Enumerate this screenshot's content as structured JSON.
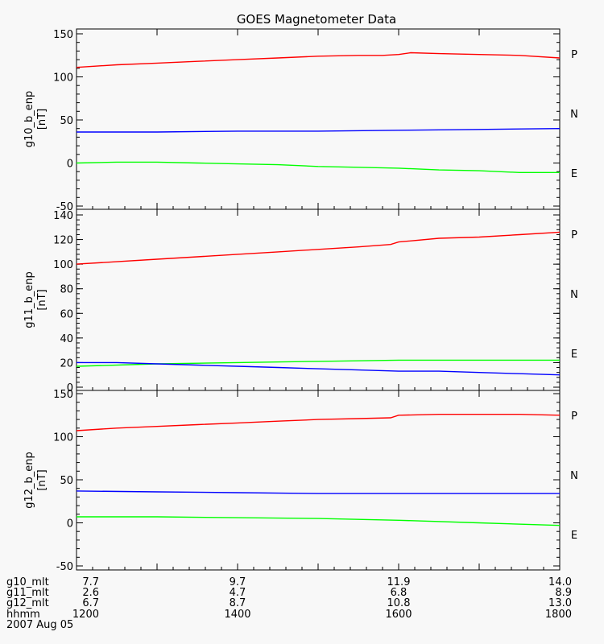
{
  "chart_data": {
    "type": "line",
    "title": "GOES Magnetometer Data",
    "date": "2007 Aug 05",
    "x_range": [
      1200,
      1800
    ],
    "panels": [
      {
        "ylabel": "g10_b_enp",
        "yunit": "[nT]",
        "ylim": [
          -50,
          150
        ],
        "yticks": [
          "-50",
          "0",
          "50",
          "100",
          "150"
        ],
        "legend": [
          "P",
          "N",
          "E"
        ],
        "series": [
          {
            "name": "P",
            "color": "#ff0000",
            "x": [
              1200,
              1250,
              1300,
              1350,
              1400,
              1450,
              1500,
              1550,
              1580,
              1600,
              1615,
              1650,
              1700,
              1750,
              1800
            ],
            "y": [
              111,
              114,
              116,
              118,
              120,
              122,
              124,
              125,
              125,
              126,
              128,
              127,
              126,
              125,
              122
            ]
          },
          {
            "name": "N",
            "color": "#0000ff",
            "x": [
              1200,
              1300,
              1400,
              1500,
              1600,
              1700,
              1800
            ],
            "y": [
              36,
              36,
              37,
              37,
              38,
              39,
              40
            ]
          },
          {
            "name": "E",
            "color": "#00ff00",
            "x": [
              1200,
              1250,
              1300,
              1350,
              1400,
              1450,
              1500,
              1550,
              1600,
              1650,
              1700,
              1750,
              1800
            ],
            "y": [
              0,
              1,
              1,
              0,
              -1,
              -2,
              -4,
              -5,
              -6,
              -8,
              -9,
              -11,
              -11
            ]
          }
        ]
      },
      {
        "ylabel": "g11_b_enp",
        "yunit": "[nT]",
        "ylim": [
          0,
          140
        ],
        "yticks": [
          "0",
          "20",
          "40",
          "60",
          "80",
          "100",
          "120",
          "140"
        ],
        "legend": [
          "P",
          "N",
          "E"
        ],
        "series": [
          {
            "name": "P",
            "color": "#ff0000",
            "x": [
              1200,
              1250,
              1300,
              1350,
              1400,
              1450,
              1500,
              1550,
              1590,
              1600,
              1650,
              1700,
              1750,
              1800
            ],
            "y": [
              100,
              102,
              104,
              106,
              108,
              110,
              112,
              114,
              116,
              118,
              121,
              122,
              124,
              126
            ]
          },
          {
            "name": "N",
            "color": "#00ff00",
            "x": [
              1200,
              1300,
              1400,
              1500,
              1600,
              1700,
              1800
            ],
            "y": [
              17,
              19,
              20,
              21,
              22,
              22,
              22
            ]
          },
          {
            "name": "E",
            "color": "#0000ff",
            "x": [
              1200,
              1250,
              1300,
              1350,
              1400,
              1450,
              1500,
              1550,
              1600,
              1650,
              1700,
              1750,
              1800
            ],
            "y": [
              20,
              20,
              19,
              18,
              17,
              16,
              15,
              14,
              13,
              13,
              12,
              11,
              10
            ]
          }
        ]
      },
      {
        "ylabel": "g12_b_enp",
        "yunit": "[nT]",
        "ylim": [
          -50,
          150
        ],
        "yticks": [
          "-50",
          "0",
          "50",
          "100",
          "150"
        ],
        "legend": [
          "P",
          "N",
          "E"
        ],
        "series": [
          {
            "name": "P",
            "color": "#ff0000",
            "x": [
              1200,
              1250,
              1300,
              1350,
              1400,
              1450,
              1500,
              1550,
              1590,
              1600,
              1650,
              1700,
              1750,
              1800
            ],
            "y": [
              107,
              110,
              112,
              114,
              116,
              118,
              120,
              121,
              122,
              125,
              126,
              126,
              126,
              125
            ]
          },
          {
            "name": "N",
            "color": "#0000ff",
            "x": [
              1200,
              1300,
              1400,
              1500,
              1600,
              1700,
              1800
            ],
            "y": [
              37,
              36,
              35,
              34,
              34,
              34,
              34
            ]
          },
          {
            "name": "E",
            "color": "#00ff00",
            "x": [
              1200,
              1300,
              1400,
              1500,
              1600,
              1700,
              1800
            ],
            "y": [
              7,
              7,
              6,
              5,
              3,
              0,
              -3
            ]
          }
        ]
      }
    ],
    "x_axis_rows": [
      {
        "label": "g10_mlt",
        "values": [
          "7.7",
          "9.7",
          "11.9",
          "14.0"
        ]
      },
      {
        "label": "g11_mlt",
        "values": [
          "2.6",
          "4.7",
          "6.8",
          "8.9"
        ]
      },
      {
        "label": "g12_mlt",
        "values": [
          "6.7",
          "8.7",
          "10.8",
          "13.0"
        ]
      },
      {
        "label": "hhmm",
        "values": [
          "1200",
          "1400",
          "1600",
          "1800"
        ]
      }
    ]
  }
}
